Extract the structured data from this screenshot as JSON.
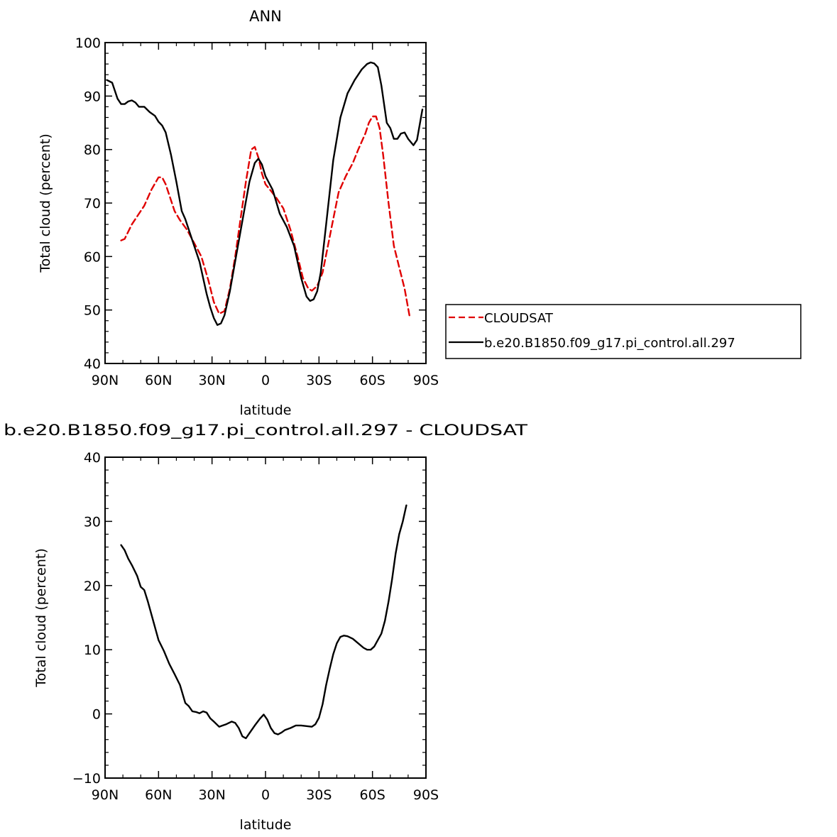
{
  "chart_data": [
    {
      "type": "line",
      "title": "ANN",
      "xlabel": "latitude",
      "ylabel": "Total cloud (percent)",
      "xlim": [
        90,
        -90
      ],
      "ylim": [
        40,
        100
      ],
      "x_ticks": [
        90,
        60,
        30,
        0,
        -30,
        -60,
        -90
      ],
      "x_tick_labels": [
        "90N",
        "60N",
        "30N",
        "0",
        "30S",
        "60S",
        "90S"
      ],
      "y_ticks": [
        40,
        50,
        60,
        70,
        80,
        90,
        100
      ],
      "y_tick_labels": [
        "40",
        "50",
        "60",
        "70",
        "80",
        "90",
        "100"
      ],
      "legend_position": "right",
      "series": [
        {
          "name": "CLOUDSAT",
          "color": "#e00000",
          "dash": "dashed",
          "points": [
            [
              81,
              63
            ],
            [
              79,
              63.3
            ],
            [
              75,
              66
            ],
            [
              72,
              67.5
            ],
            [
              68,
              69.5
            ],
            [
              64,
              72.5
            ],
            [
              60,
              74.8
            ],
            [
              58,
              74.8
            ],
            [
              56,
              73.5
            ],
            [
              54,
              71.5
            ],
            [
              51,
              68.5
            ],
            [
              48,
              66.8
            ],
            [
              44,
              65
            ],
            [
              40,
              62.5
            ],
            [
              36,
              60
            ],
            [
              32,
              55.5
            ],
            [
              29,
              51.5
            ],
            [
              26,
              49.3
            ],
            [
              23,
              49.8
            ],
            [
              20,
              54
            ],
            [
              17,
              60
            ],
            [
              14,
              67
            ],
            [
              11,
              74
            ],
            [
              8,
              80
            ],
            [
              6,
              80.5
            ],
            [
              4,
              78.5
            ],
            [
              2,
              75.5
            ],
            [
              0,
              73.5
            ],
            [
              -3,
              72.3
            ],
            [
              -6,
              71
            ],
            [
              -10,
              69
            ],
            [
              -14,
              65
            ],
            [
              -18,
              60
            ],
            [
              -21,
              56
            ],
            [
              -24,
              54
            ],
            [
              -26,
              53.6
            ],
            [
              -29,
              54.5
            ],
            [
              -32,
              57
            ],
            [
              -35,
              62
            ],
            [
              -38,
              67
            ],
            [
              -41,
              72
            ],
            [
              -45,
              75
            ],
            [
              -49,
              77.5
            ],
            [
              -52,
              80
            ],
            [
              -56,
              83
            ],
            [
              -58,
              85
            ],
            [
              -60,
              86.2
            ],
            [
              -62,
              86.2
            ],
            [
              -64,
              84
            ],
            [
              -66,
              79
            ],
            [
              -69,
              70
            ],
            [
              -72,
              62
            ],
            [
              -75,
              58
            ],
            [
              -78,
              54
            ],
            [
              -81,
              48.5
            ]
          ]
        },
        {
          "name": "b.e20.B1850.f09_g17.pi_control.all.297",
          "color": "#000000",
          "dash": "solid",
          "points": [
            [
              89,
              93
            ],
            [
              86,
              92.5
            ],
            [
              83,
              89.5
            ],
            [
              81,
              88.5
            ],
            [
              79,
              88.5
            ],
            [
              77,
              89
            ],
            [
              75,
              89.2
            ],
            [
              73,
              88.8
            ],
            [
              71,
              88
            ],
            [
              68,
              88
            ],
            [
              65,
              87
            ],
            [
              62,
              86.3
            ],
            [
              60,
              85.2
            ],
            [
              58,
              84.5
            ],
            [
              56,
              83.2
            ],
            [
              53,
              79
            ],
            [
              50,
              74
            ],
            [
              47,
              68.5
            ],
            [
              45,
              67
            ],
            [
              41,
              63
            ],
            [
              37,
              59
            ],
            [
              33,
              53
            ],
            [
              31,
              50.5
            ],
            [
              29,
              48.5
            ],
            [
              27,
              47.2
            ],
            [
              25,
              47.5
            ],
            [
              23,
              49
            ],
            [
              20,
              53.5
            ],
            [
              16,
              61
            ],
            [
              12,
              68.5
            ],
            [
              9,
              74
            ],
            [
              6,
              77.5
            ],
            [
              4,
              78.3
            ],
            [
              2,
              77.2
            ],
            [
              0,
              75
            ],
            [
              -4,
              72.5
            ],
            [
              -8,
              68
            ],
            [
              -12,
              65.5
            ],
            [
              -16,
              62
            ],
            [
              -20,
              56
            ],
            [
              -23,
              52.5
            ],
            [
              -25,
              51.7
            ],
            [
              -27,
              52
            ],
            [
              -29,
              53.5
            ],
            [
              -31,
              57
            ],
            [
              -34,
              66
            ],
            [
              -38,
              78
            ],
            [
              -42,
              86
            ],
            [
              -46,
              90.5
            ],
            [
              -50,
              93
            ],
            [
              -54,
              95
            ],
            [
              -57,
              96
            ],
            [
              -59,
              96.3
            ],
            [
              -61,
              96.1
            ],
            [
              -63,
              95.4
            ],
            [
              -65,
              92
            ],
            [
              -68,
              85
            ],
            [
              -70,
              84
            ],
            [
              -72,
              82
            ],
            [
              -74,
              82
            ],
            [
              -76,
              83
            ],
            [
              -78,
              83.2
            ],
            [
              -80,
              82
            ],
            [
              -83,
              80.8
            ],
            [
              -85,
              81.8
            ],
            [
              -88,
              87.5
            ]
          ]
        }
      ]
    },
    {
      "type": "line",
      "title": "b.e20.B1850.f09_g17.pi_control.all.297 - CLOUDSAT",
      "xlabel": "latitude",
      "ylabel": "Total cloud (percent)",
      "xlim": [
        90,
        -90
      ],
      "ylim": [
        -10,
        40
      ],
      "x_ticks": [
        90,
        60,
        30,
        0,
        -30,
        -60,
        -90
      ],
      "x_tick_labels": [
        "90N",
        "60N",
        "30N",
        "0",
        "30S",
        "60S",
        "90S"
      ],
      "y_ticks": [
        -10,
        0,
        10,
        20,
        30,
        40
      ],
      "y_tick_labels": [
        "−10",
        "0",
        "10",
        "20",
        "30",
        "40"
      ],
      "series": [
        {
          "color": "#000000",
          "dash": "solid",
          "points": [
            [
              81,
              26.3
            ],
            [
              79,
              25.5
            ],
            [
              77,
              24.2
            ],
            [
              75,
              23.2
            ],
            [
              72,
              21.5
            ],
            [
              70,
              19.8
            ],
            [
              68,
              19.3
            ],
            [
              66,
              17.5
            ],
            [
              63,
              14.5
            ],
            [
              60,
              11.5
            ],
            [
              57,
              9.8
            ],
            [
              54,
              7.8
            ],
            [
              51,
              6.2
            ],
            [
              48,
              4.5
            ],
            [
              45,
              1.7
            ],
            [
              43,
              1.2
            ],
            [
              41,
              0.4
            ],
            [
              39,
              0.3
            ],
            [
              37,
              0.1
            ],
            [
              35,
              0.4
            ],
            [
              33,
              0.2
            ],
            [
              31,
              -0.7
            ],
            [
              29,
              -1.2
            ],
            [
              26,
              -2
            ],
            [
              24,
              -1.8
            ],
            [
              22,
              -1.6
            ],
            [
              19,
              -1.2
            ],
            [
              17,
              -1.4
            ],
            [
              15,
              -2.2
            ],
            [
              13,
              -3.5
            ],
            [
              11,
              -3.8
            ],
            [
              9,
              -3
            ],
            [
              6,
              -1.8
            ],
            [
              3,
              -0.7
            ],
            [
              1,
              -0.1
            ],
            [
              -1,
              -0.9
            ],
            [
              -3,
              -2.2
            ],
            [
              -5,
              -3
            ],
            [
              -7,
              -3.2
            ],
            [
              -9,
              -2.9
            ],
            [
              -11,
              -2.5
            ],
            [
              -14,
              -2.2
            ],
            [
              -17,
              -1.8
            ],
            [
              -20,
              -1.8
            ],
            [
              -23,
              -1.9
            ],
            [
              -26,
              -2
            ],
            [
              -28,
              -1.6
            ],
            [
              -30,
              -0.6
            ],
            [
              -32,
              1.5
            ],
            [
              -34,
              4.5
            ],
            [
              -36,
              7
            ],
            [
              -38,
              9.3
            ],
            [
              -40,
              11
            ],
            [
              -42,
              12
            ],
            [
              -44,
              12.2
            ],
            [
              -46,
              12.1
            ],
            [
              -49,
              11.7
            ],
            [
              -52,
              11
            ],
            [
              -55,
              10.3
            ],
            [
              -57,
              10
            ],
            [
              -59,
              10
            ],
            [
              -61,
              10.5
            ],
            [
              -63,
              11.5
            ],
            [
              -65,
              12.5
            ],
            [
              -67,
              14.5
            ],
            [
              -69,
              17.5
            ],
            [
              -71,
              21
            ],
            [
              -73,
              25
            ],
            [
              -75,
              28
            ],
            [
              -77,
              30
            ],
            [
              -79,
              32.5
            ]
          ]
        }
      ]
    }
  ]
}
